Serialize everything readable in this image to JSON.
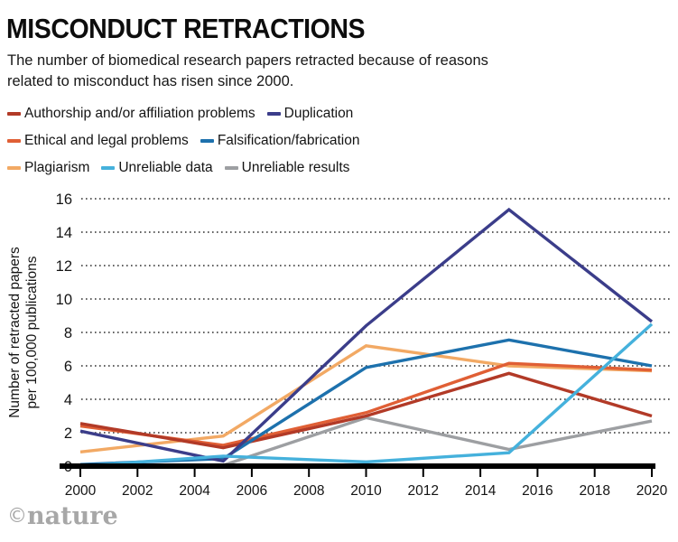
{
  "header": {
    "title": "MISCONDUCT RETRACTIONS",
    "subtitle": "The number of biomedical research papers retracted because of reasons related to misconduct has risen since 2000."
  },
  "legend": {
    "rows": [
      [
        {
          "label": "Authorship and/or affiliation problems",
          "color": "#b23a27"
        },
        {
          "label": "Duplication",
          "color": "#3b3d8a"
        }
      ],
      [
        {
          "label": "Ethical and legal problems",
          "color": "#e05f35"
        },
        {
          "label": "Falsification/fabrication",
          "color": "#1d71ad"
        }
      ],
      [
        {
          "label": "Plagiarism",
          "color": "#f2a964"
        },
        {
          "label": "Unreliable data",
          "color": "#45b1dc"
        },
        {
          "label": "Unreliable results",
          "color": "#9d9fa2"
        }
      ]
    ]
  },
  "chart_data": {
    "type": "line",
    "title": "MISCONDUCT RETRACTIONS",
    "x": [
      2000,
      2005,
      2010,
      2015,
      2020
    ],
    "series": [
      {
        "name": "Authorship and/or affiliation problems",
        "color": "#b23a27",
        "values": [
          2.55,
          1.1,
          3.0,
          5.55,
          3.0
        ]
      },
      {
        "name": "Duplication",
        "color": "#3b3d8a",
        "values": [
          2.1,
          0.3,
          8.4,
          15.35,
          8.65
        ]
      },
      {
        "name": "Ethical and legal problems",
        "color": "#e05f35",
        "values": [
          2.4,
          1.25,
          3.2,
          6.15,
          5.75
        ]
      },
      {
        "name": "Falsification/fabrication",
        "color": "#1d71ad",
        "values": [
          0.1,
          0.45,
          5.9,
          7.55,
          6.0
        ]
      },
      {
        "name": "Plagiarism",
        "color": "#f2a964",
        "values": [
          0.85,
          1.8,
          7.2,
          6.0,
          5.7
        ]
      },
      {
        "name": "Unreliable data",
        "color": "#45b1dc",
        "values": [
          0.0,
          0.6,
          0.25,
          0.8,
          8.5
        ]
      },
      {
        "name": "Unreliable results",
        "color": "#9d9fa2",
        "values": [
          0.0,
          0.05,
          2.9,
          1.0,
          2.7
        ]
      }
    ],
    "draw_order": [
      "Unreliable results",
      "Plagiarism",
      "Ethical and legal problems",
      "Authorship and/or affiliation problems",
      "Falsification/fabrication",
      "Duplication",
      "Unreliable data"
    ],
    "ylabel_lines": [
      "Number of retracted papers",
      "per 100,000 publications"
    ],
    "ylim": [
      0,
      16
    ],
    "yticks": [
      0,
      2,
      4,
      6,
      8,
      10,
      12,
      14,
      16
    ],
    "xticks": [
      2000,
      2002,
      2004,
      2006,
      2008,
      2010,
      2012,
      2014,
      2016,
      2018,
      2020
    ],
    "grid": "dotted-horizontal",
    "legend_position": "top"
  },
  "footer": {
    "copyright_symbol": "©",
    "logo": "nature"
  }
}
